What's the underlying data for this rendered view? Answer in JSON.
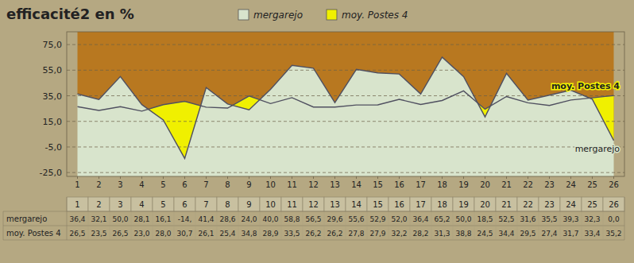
{
  "chart_data": {
    "type": "area",
    "title": "efficacité2 en %",
    "categories": [
      "1",
      "2",
      "3",
      "4",
      "5",
      "6",
      "7",
      "8",
      "9",
      "10",
      "11",
      "12",
      "13",
      "14",
      "15",
      "16",
      "17",
      "18",
      "19",
      "20",
      "21",
      "22",
      "23",
      "24",
      "25",
      "26"
    ],
    "series": [
      {
        "name": "mergarejo",
        "color": "#d8e4cc",
        "values": [
          36.4,
          32.1,
          50.0,
          28.1,
          16.1,
          -14.0,
          41.4,
          28.6,
          24.0,
          40.0,
          58.8,
          56.5,
          29.6,
          55.6,
          52.9,
          52.0,
          36.4,
          65.2,
          50.0,
          18.5,
          52.5,
          31.6,
          35.5,
          39.3,
          32.3,
          0.0
        ],
        "value_labels": [
          "36,4",
          "32,1",
          "50,0",
          "28,1",
          "16,1",
          "-14,",
          "41,4",
          "28,6",
          "24,0",
          "40,0",
          "58,8",
          "56,5",
          "29,6",
          "55,6",
          "52,9",
          "52,0",
          "36,4",
          "65,2",
          "50,0",
          "18,5",
          "52,5",
          "31,6",
          "35,5",
          "39,3",
          "32,3",
          "0,0"
        ]
      },
      {
        "name": "moy. Postes 4",
        "color": "#f0f000",
        "values": [
          26.5,
          23.5,
          26.5,
          23.0,
          28.0,
          30.7,
          26.1,
          25.4,
          34.8,
          28.9,
          33.5,
          26.2,
          26.2,
          27.8,
          27.9,
          32.2,
          28.2,
          31.3,
          38.8,
          24.5,
          34.4,
          29.5,
          27.4,
          31.7,
          33.4,
          35.2
        ],
        "value_labels": [
          "26,5",
          "23,5",
          "26,5",
          "23,0",
          "28,0",
          "30,7",
          "26,1",
          "25,4",
          "34,8",
          "28,9",
          "33,5",
          "26,2",
          "26,2",
          "27,8",
          "27,9",
          "32,2",
          "28,2",
          "31,3",
          "38,8",
          "24,5",
          "34,4",
          "29,5",
          "27,4",
          "31,7",
          "33,4",
          "35,2"
        ]
      }
    ],
    "ylim": [
      -28,
      85
    ],
    "yticks": [
      {
        "value": -25.0,
        "label": "-25,0"
      },
      {
        "value": -5.0,
        "label": "-5,0"
      },
      {
        "value": 15.0,
        "label": "15,0"
      },
      {
        "value": 35.0,
        "label": "35,0"
      },
      {
        "value": 55.0,
        "label": "55,0"
      },
      {
        "value": 75.0,
        "label": "75,0"
      }
    ],
    "grid": true,
    "legend": "top",
    "data_labels": true,
    "annotations": [
      {
        "text": "mergarejo"
      },
      {
        "text": "moy. Postes 4"
      }
    ]
  }
}
